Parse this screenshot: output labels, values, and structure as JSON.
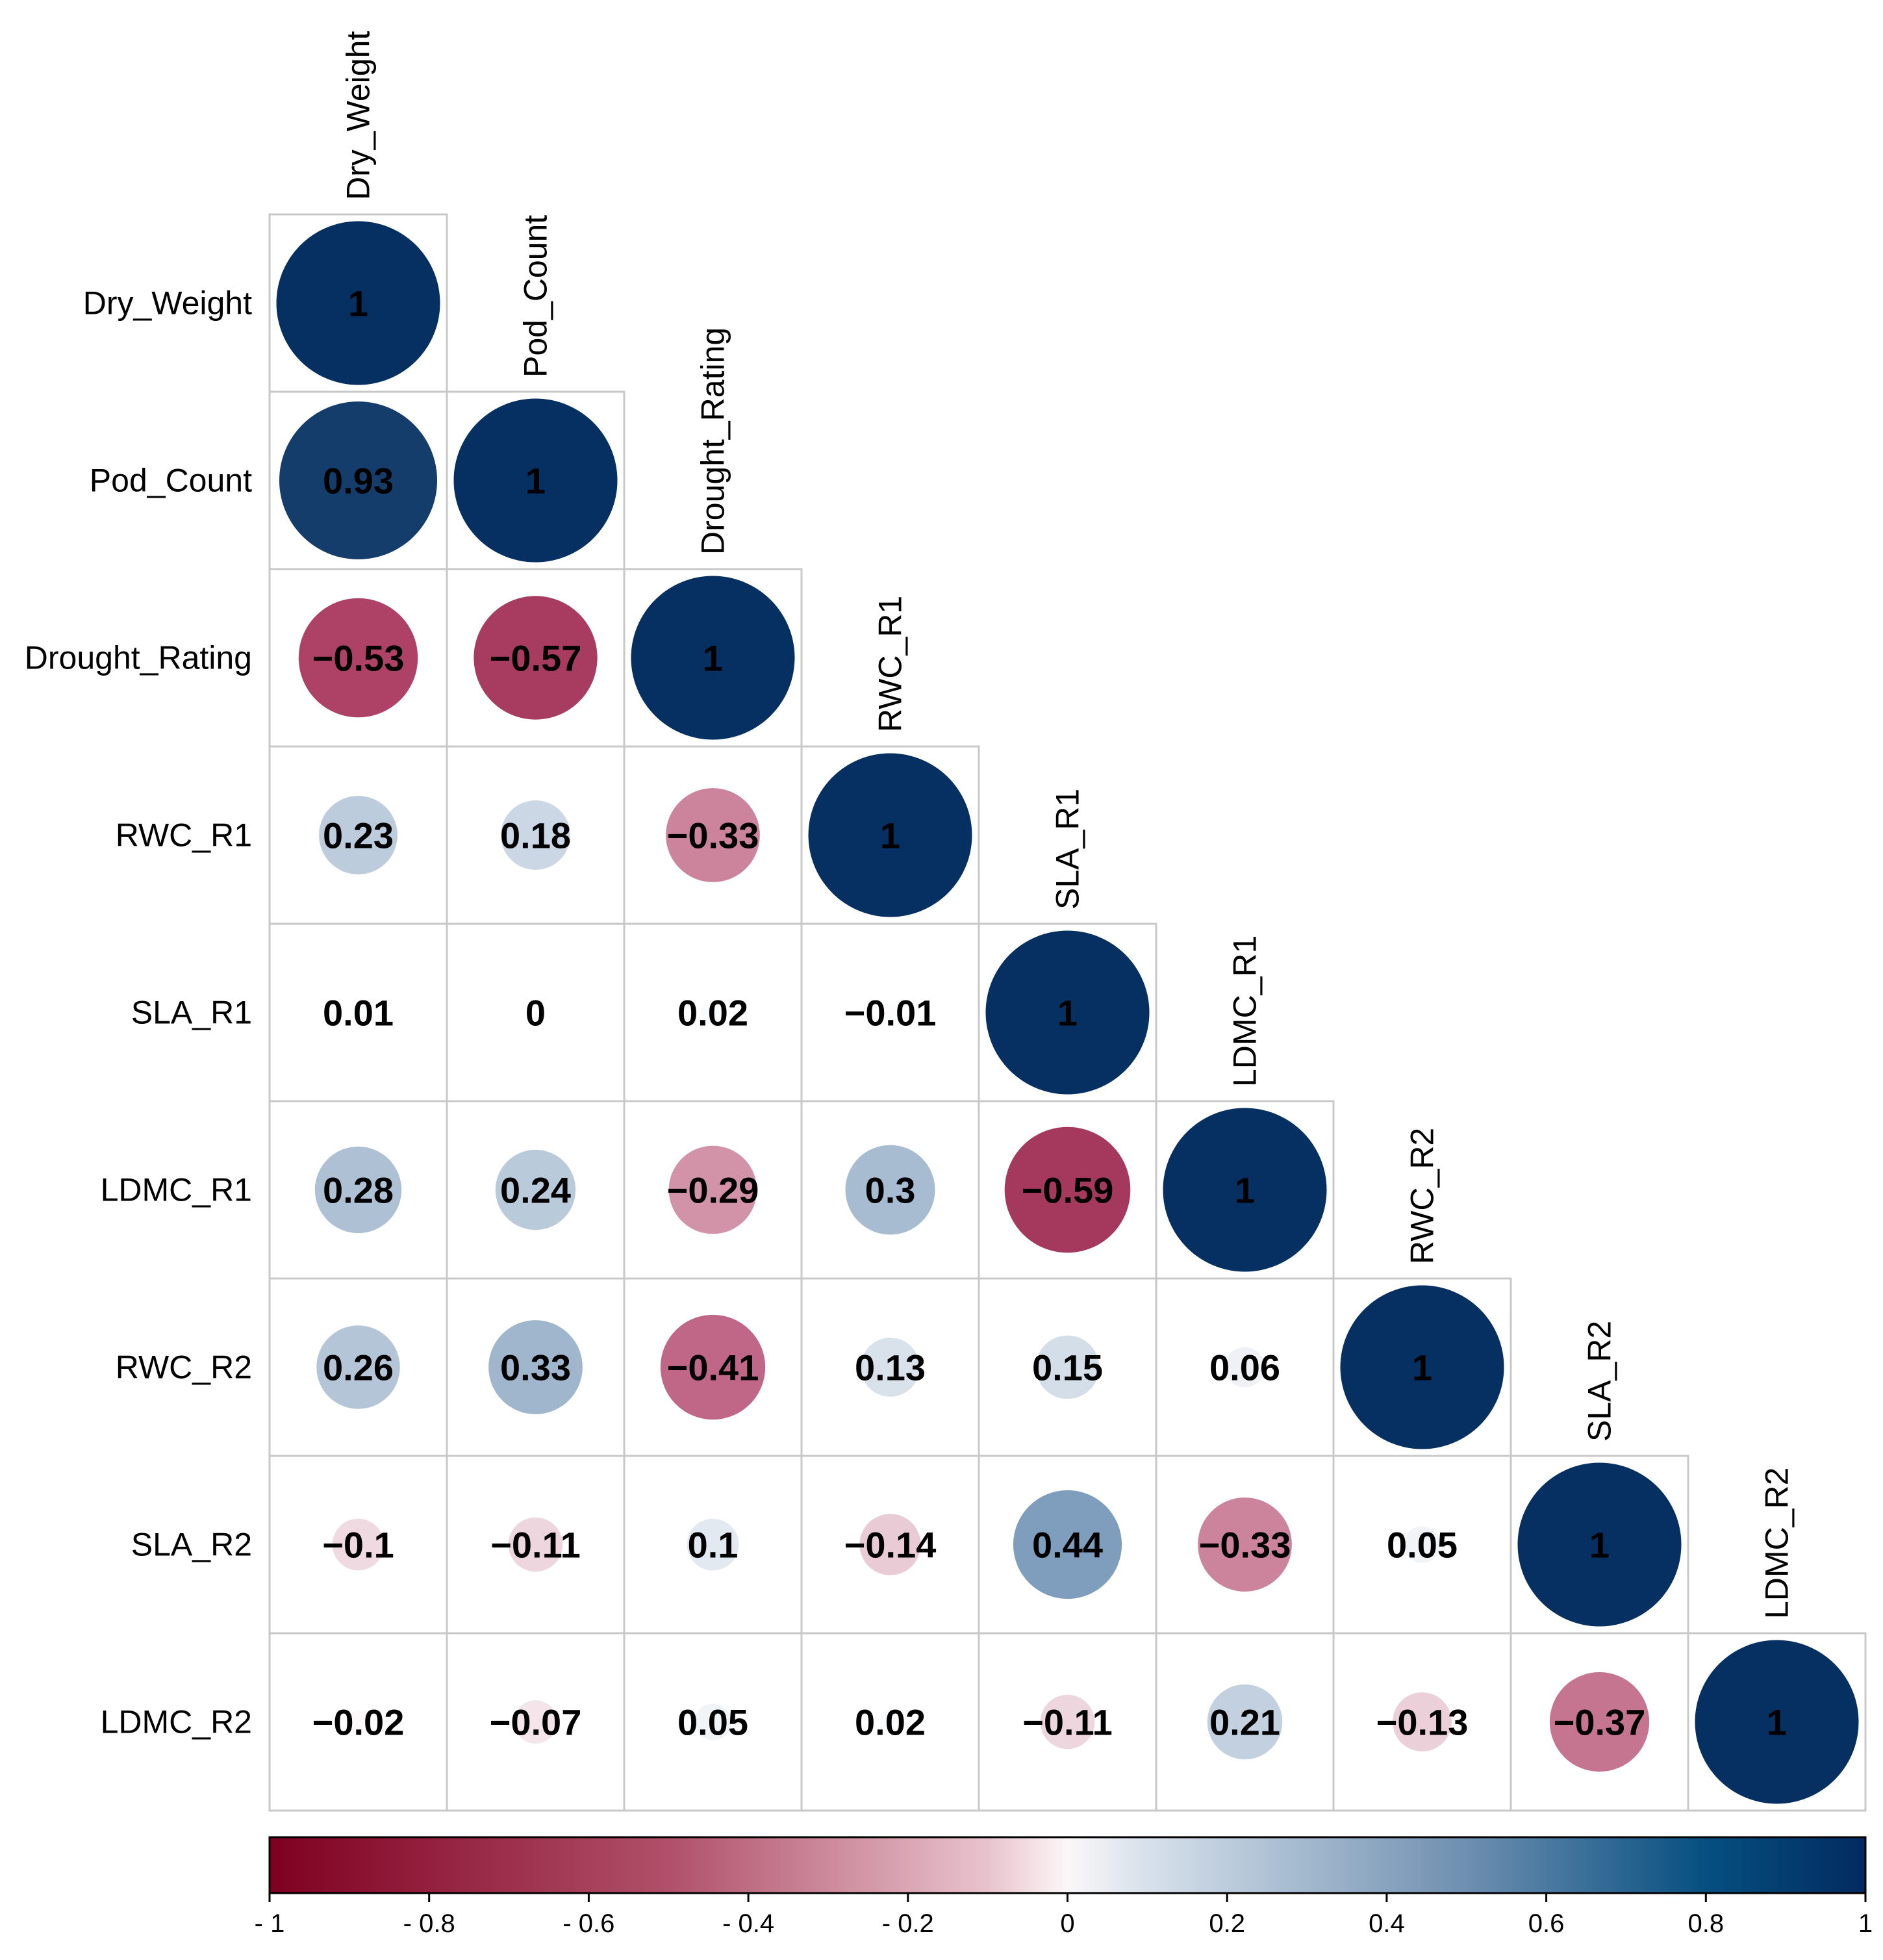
{
  "chart_data": {
    "type": "heatmap",
    "style": "correlogram-lower-circles",
    "variables": [
      "Dry_Weight",
      "Pod_Count",
      "Drought_Rating",
      "RWC_R1",
      "SLA_R1",
      "LDMC_R1",
      "RWC_R2",
      "SLA_R2",
      "LDMC_R2"
    ],
    "matrix": [
      [
        1
      ],
      [
        0.93,
        1
      ],
      [
        -0.53,
        -0.57,
        1
      ],
      [
        0.23,
        0.18,
        -0.33,
        1
      ],
      [
        0.01,
        0,
        0.02,
        -0.01,
        1
      ],
      [
        0.28,
        0.24,
        -0.29,
        0.3,
        -0.59,
        1
      ],
      [
        0.26,
        0.33,
        -0.41,
        0.13,
        0.15,
        0.06,
        1
      ],
      [
        -0.1,
        -0.11,
        0.1,
        -0.14,
        0.44,
        -0.33,
        0.05,
        1
      ],
      [
        -0.02,
        -0.07,
        0.05,
        0.02,
        -0.11,
        0.21,
        -0.13,
        -0.37,
        1
      ]
    ],
    "labels": [
      [
        "1"
      ],
      [
        "0.93",
        "1"
      ],
      [
        "−0.53",
        "−0.57",
        "1"
      ],
      [
        "0.23",
        "0.18",
        "−0.33",
        "1"
      ],
      [
        "0.01",
        "0",
        "0.02",
        "−0.01",
        "1"
      ],
      [
        "0.28",
        "0.24",
        "−0.29",
        "0.3",
        "−0.59",
        "1"
      ],
      [
        "0.26",
        "0.33",
        "−0.41",
        "0.13",
        "0.15",
        "0.06",
        "1"
      ],
      [
        "−0.1",
        "−0.11",
        "0.1",
        "−0.14",
        "0.44",
        "−0.33",
        "0.05",
        "1"
      ],
      [
        "−0.02",
        "−0.07",
        "0.05",
        "0.02",
        "−0.11",
        "0.21",
        "−0.13",
        "−0.37",
        "1"
      ]
    ],
    "colorbar": {
      "range": [
        -1,
        1
      ],
      "ticks": [
        -1,
        -0.8,
        -0.6,
        -0.4,
        -0.2,
        0,
        0.2,
        0.4,
        0.6,
        0.8,
        1
      ],
      "tick_labels": [
        "- 1",
        "- 0.8",
        "- 0.6",
        "- 0.4",
        "- 0.2",
        "0",
        "0.2",
        "0.4",
        "0.6",
        "0.8",
        "1"
      ],
      "colors": [
        "#67001f",
        "#b2182b",
        "#d6604d",
        "#f4a582",
        "#fddbc7",
        "#ffffff",
        "#d1e5f0",
        "#92c5de",
        "#4393c3",
        "#2166ac",
        "#053061"
      ],
      "placement": "bottom"
    },
    "diverging_colors": {
      "negative": "#67001f",
      "neg_mid": "#b2456b",
      "neutral": "#ffffff",
      "pos_mid": "#6e90b3",
      "positive": "#053061",
      "grid": "#c8c8c8"
    }
  }
}
